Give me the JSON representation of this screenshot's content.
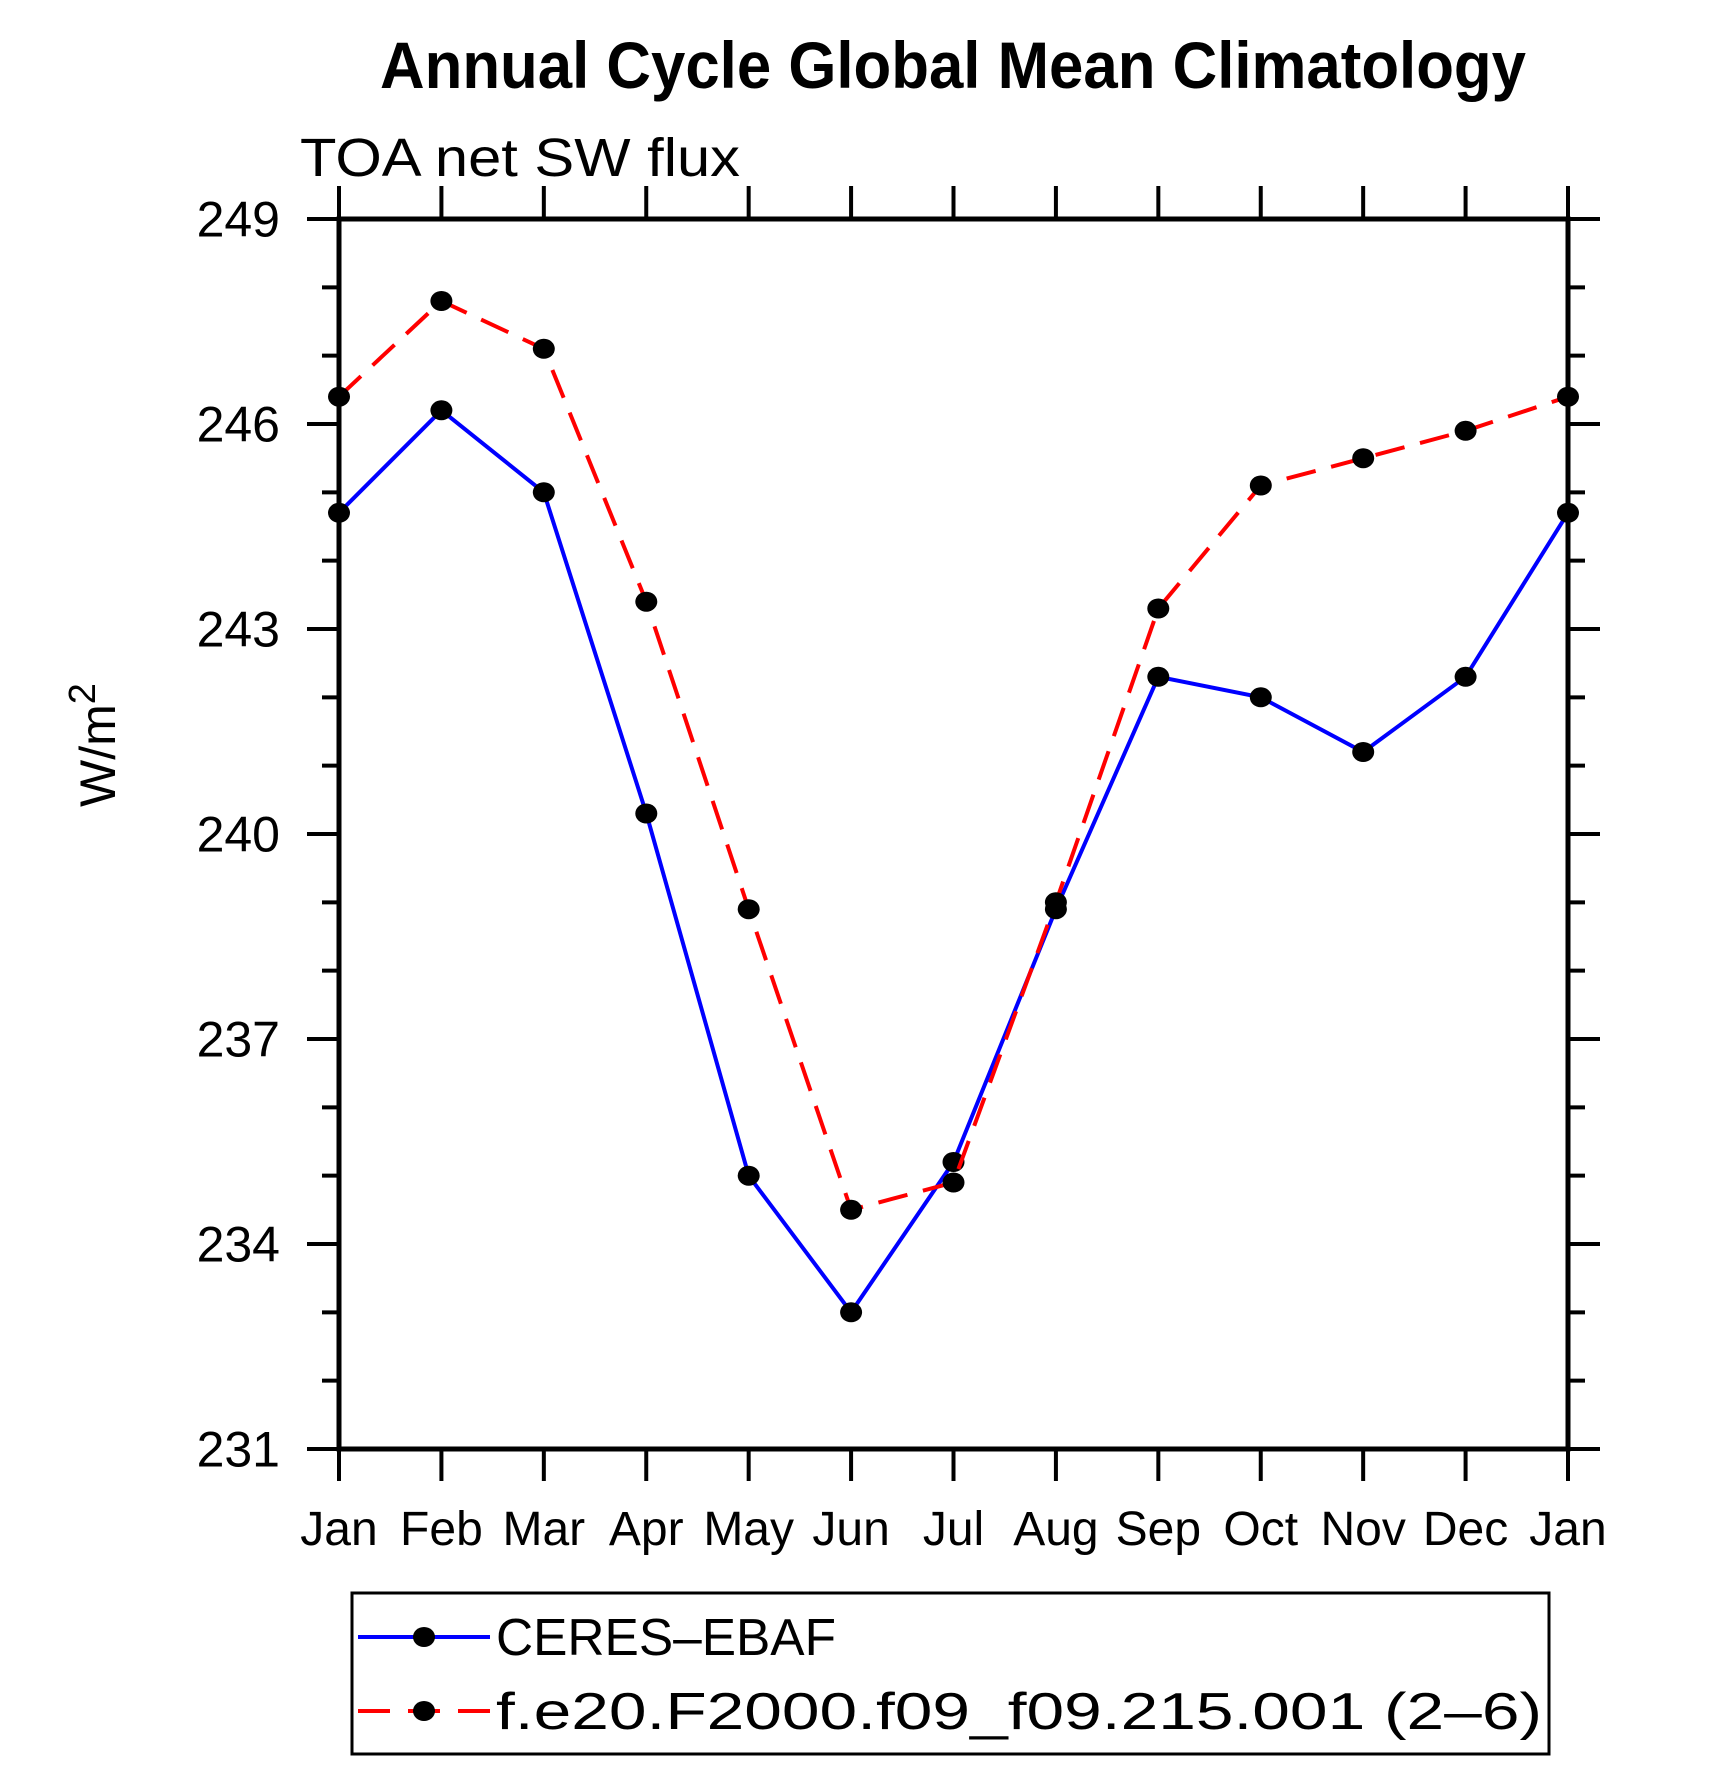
{
  "page": {
    "background": "#ffffff",
    "axis_color": "#000000"
  },
  "chart_data": {
    "type": "line",
    "title": "Annual Cycle Global Mean Climatology",
    "subtitle": "TOA net SW flux",
    "ylabel": "W/m²",
    "ylabel_base": "W/m",
    "ylabel_sup": "2",
    "categories": [
      "Jan",
      "Feb",
      "Mar",
      "Apr",
      "May",
      "Jun",
      "Jul",
      "Aug",
      "Sep",
      "Oct",
      "Nov",
      "Dec",
      "Jan"
    ],
    "y_axis": {
      "min": 231,
      "max": 249,
      "major_step": 3,
      "minor_step": 1,
      "major_tick_labels": [
        "249",
        "246",
        "243",
        "240",
        "237",
        "234",
        "231"
      ]
    },
    "series": [
      {
        "name": "CERES–EBAF",
        "line_color": "#0000ff",
        "line_style": "solid",
        "marker": "filled-circle",
        "marker_color": "#000000",
        "values": [
          244.7,
          246.2,
          245.0,
          240.3,
          235.0,
          233.0,
          235.2,
          238.9,
          242.3,
          242.0,
          241.2,
          242.3,
          244.7
        ]
      },
      {
        "name": "f.e20.F2000.f09_f09.215.001 (2–6)",
        "line_color": "#ff0000",
        "line_style": "dashed",
        "marker": "filled-circle",
        "marker_color": "#000000",
        "values": [
          246.4,
          247.8,
          247.1,
          243.4,
          238.9,
          234.5,
          234.9,
          239.0,
          243.3,
          245.1,
          245.5,
          245.9,
          246.4
        ]
      }
    ],
    "legend_position": "bottom",
    "grid": "off"
  }
}
